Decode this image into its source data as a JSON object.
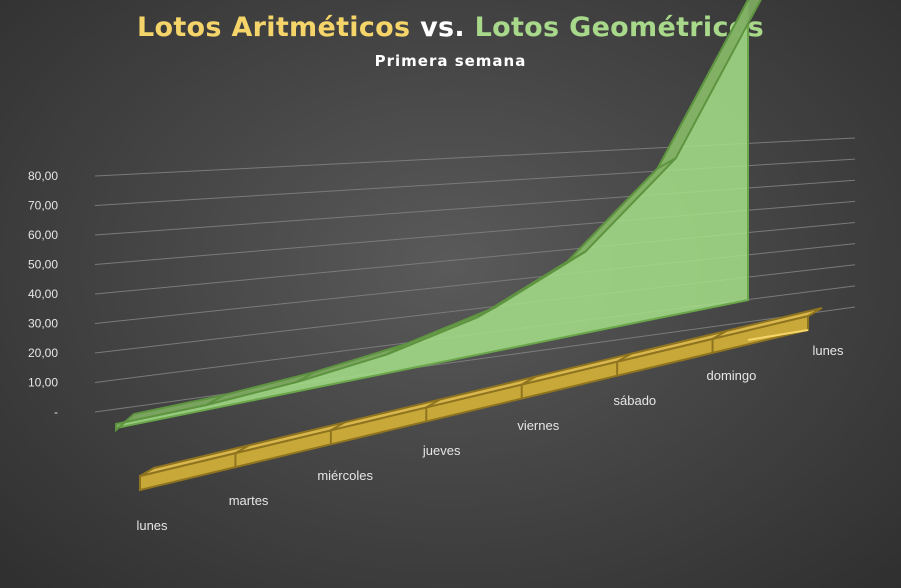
{
  "chart_data": {
    "type": "area",
    "title_parts": {
      "arith": "Lotos Aritméticos",
      "vs": "vs.",
      "geom": "Lotos Geométricos"
    },
    "subtitle": "Primera semana",
    "categories": [
      "lunes",
      "martes",
      "miércoles",
      "jueves",
      "viernes",
      "sábado",
      "domingo",
      "lunes"
    ],
    "y_ticks": [
      "-",
      "10,00",
      "20,00",
      "30,00",
      "40,00",
      "50,00",
      "60,00",
      "70,00",
      "80,00"
    ],
    "ylim": [
      0,
      80
    ],
    "grid": true,
    "three_d": true,
    "series": [
      {
        "name": "Lotos Aritméticos",
        "values": [
          1,
          1,
          1,
          1,
          1,
          1,
          1,
          1
        ],
        "color": "#e8c54a"
      },
      {
        "name": "Lotos Geométricos",
        "values": [
          1,
          2,
          4,
          8,
          16,
          32,
          64,
          128
        ],
        "color": "#8fd16a"
      }
    ]
  }
}
